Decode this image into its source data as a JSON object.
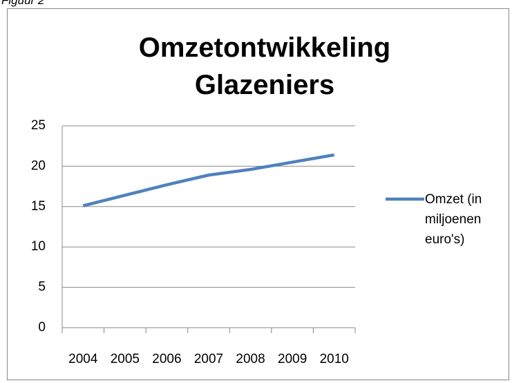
{
  "caption": "Figuur 2",
  "chart_data": {
    "type": "line",
    "title": "Omzetontwikkeling Glazeniers",
    "categories": [
      "2004",
      "2005",
      "2006",
      "2007",
      "2008",
      "2009",
      "2010"
    ],
    "series": [
      {
        "name": "Omzet (in miljoenen euro's)",
        "color": "#4f81bd",
        "values": [
          15.1,
          16.4,
          17.7,
          18.9,
          19.6,
          20.5,
          21.4
        ]
      }
    ],
    "ylim": [
      0,
      25
    ],
    "yticks": [
      0,
      5,
      10,
      15,
      20,
      25
    ],
    "grid": true,
    "legend": "right"
  }
}
